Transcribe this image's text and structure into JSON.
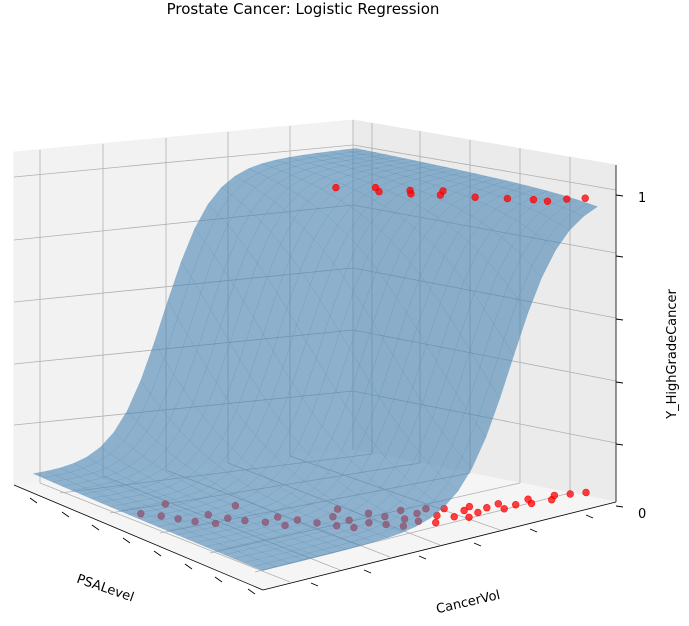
{
  "chart_data": {
    "type": "scatter",
    "title": "Prostate Cancer: Logistic Regression",
    "xlabel": "PSALevel",
    "ylabel": "CancerVol",
    "zlabel": "Y_HighGradeCancer",
    "zticks": [
      "0",
      "1"
    ],
    "zlim": [
      -0.05,
      1.05
    ],
    "surface": {
      "type": "logistic-surface",
      "color": "#4a86b4",
      "opacity": 0.6
    },
    "series": [
      {
        "color": "#ff0000",
        "points": [
          [
            0.56,
            0.05,
            0
          ],
          [
            0.52,
            0.08,
            0
          ],
          [
            0.48,
            0.1,
            0
          ],
          [
            0.44,
            0.12,
            0
          ],
          [
            0.4,
            0.15,
            0
          ],
          [
            0.47,
            0.18,
            0
          ],
          [
            0.42,
            0.2,
            0
          ],
          [
            0.38,
            0.22,
            0
          ],
          [
            0.34,
            0.25,
            0
          ],
          [
            0.29,
            0.27,
            0
          ],
          [
            0.36,
            0.3,
            0
          ],
          [
            0.31,
            0.32,
            0
          ],
          [
            0.26,
            0.34,
            0
          ],
          [
            0.21,
            0.36,
            0
          ],
          [
            0.17,
            0.38,
            0
          ],
          [
            0.28,
            0.4,
            0
          ],
          [
            0.23,
            0.41,
            0
          ],
          [
            0.18,
            0.43,
            0
          ],
          [
            0.14,
            0.45,
            0
          ],
          [
            0.1,
            0.47,
            0
          ],
          [
            0.25,
            0.48,
            0
          ],
          [
            0.2,
            0.49,
            0
          ],
          [
            0.15,
            0.51,
            0
          ],
          [
            0.11,
            0.52,
            0
          ],
          [
            0.07,
            0.54,
            0
          ],
          [
            0.22,
            0.55,
            0
          ],
          [
            0.17,
            0.56,
            0
          ],
          [
            0.12,
            0.58,
            0
          ],
          [
            0.08,
            0.6,
            0
          ],
          [
            0.05,
            0.62,
            0
          ],
          [
            0.16,
            0.63,
            0
          ],
          [
            0.11,
            0.65,
            0
          ],
          [
            0.07,
            0.66,
            0
          ],
          [
            0.13,
            0.68,
            0
          ],
          [
            0.09,
            0.7,
            0
          ],
          [
            0.05,
            0.72,
            0
          ],
          [
            0.1,
            0.74,
            0
          ],
          [
            0.06,
            0.76,
            0
          ],
          [
            0.04,
            0.79,
            0
          ],
          [
            0.08,
            0.81,
            0
          ],
          [
            0.03,
            0.84,
            0
          ],
          [
            0.06,
            0.87,
            0
          ],
          [
            0.04,
            0.9,
            0
          ],
          [
            0.02,
            0.93,
            0
          ],
          [
            0.6,
            0.15,
            0
          ],
          [
            0.5,
            0.28,
            0
          ],
          [
            0.33,
            0.45,
            0
          ],
          [
            0.19,
            0.6,
            0
          ],
          [
            0.58,
            0.63,
            1
          ],
          [
            0.48,
            0.68,
            1
          ],
          [
            0.41,
            0.72,
            1
          ],
          [
            0.35,
            0.76,
            1
          ],
          [
            0.27,
            0.8,
            1
          ],
          [
            0.2,
            0.84,
            1
          ],
          [
            0.14,
            0.87,
            1
          ],
          [
            0.1,
            0.88,
            1
          ],
          [
            0.08,
            0.92,
            1
          ],
          [
            0.05,
            0.95,
            1
          ],
          [
            0.52,
            0.7,
            1
          ],
          [
            0.44,
            0.74,
            1
          ],
          [
            0.38,
            0.79,
            1
          ]
        ]
      }
    ]
  }
}
